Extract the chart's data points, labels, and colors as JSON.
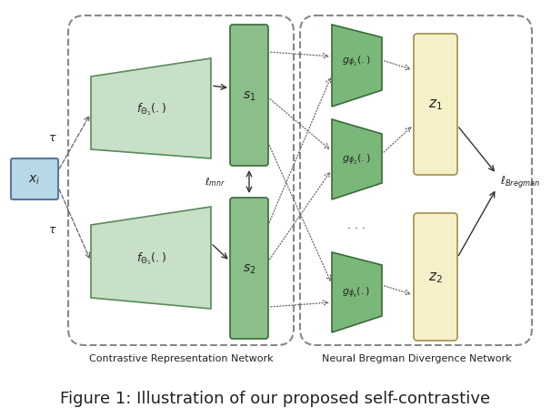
{
  "bg_color": "#ffffff",
  "title_text": "Figure 1: Illustration of our proposed self-contrastive",
  "label_contrastive": "Contrastive Representation Network",
  "label_bregman": "Neural Bregman Divergence Network",
  "xi_label": "$x_i$",
  "tau_label": "$\\tau$",
  "f_theta1_label": "$f_{\\Theta_1}(.)$",
  "s1_label": "$s_1$",
  "s2_label": "$s_2$",
  "l_mnr_label": "$\\ell_{mnr}$",
  "g_phi1_label": "$g_{\\phi_1}(.)$",
  "g_phi2_label": "$g_{\\phi_2}(.)$",
  "g_phik_label": "$g_{\\phi_k}(.)$",
  "z1_label": "$z_1$",
  "z2_label": "$z_2$",
  "l_bregman_label": "$\\ell_{Bregman}$",
  "light_green_fill": "#c8dfc8",
  "light_green_edge": "#5a8a5a",
  "medium_green_fill": "#7ab87a",
  "medium_green_edge": "#3a6a3a",
  "s_green_fill": "#8abf8a",
  "s_green_edge": "#3a6a3a",
  "light_yellow_fill": "#f5f0c8",
  "yellow_edge": "#a09050",
  "blue_fill": "#b8d8e8",
  "blue_edge": "#5878a0",
  "border_color": "#888888",
  "arrow_color": "#333333",
  "dashed_arrow_color": "#666666",
  "text_color": "#222222"
}
